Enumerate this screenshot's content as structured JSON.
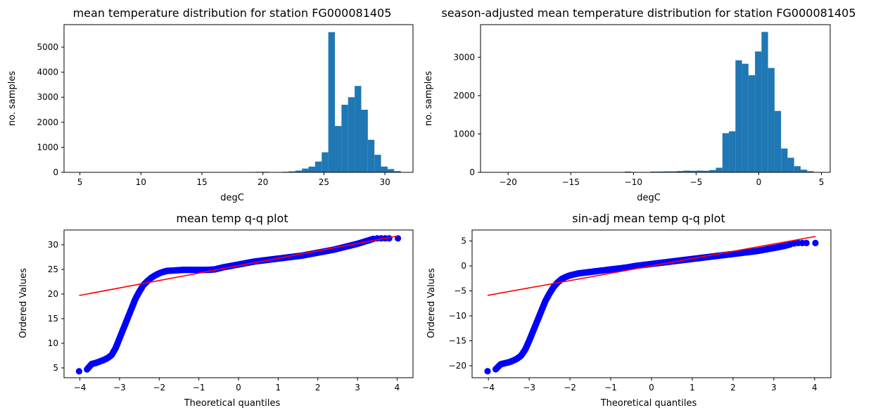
{
  "colors": {
    "hist_bar": "#1f77b4",
    "qq_points": "#0000ff",
    "qq_line": "#ff0000"
  },
  "chart_data": [
    {
      "type": "bar",
      "title": "mean temperature distribution for station FG000081405",
      "xlabel": "degC",
      "ylabel": "no. samples",
      "xlim": [
        3.7,
        32.3
      ],
      "ylim": [
        0,
        5900
      ],
      "xticks": [
        "5",
        "10",
        "15",
        "20",
        "25",
        "30"
      ],
      "yticks": [
        "0",
        "1000",
        "2000",
        "3000",
        "4000",
        "5000"
      ],
      "bin_edges": [
        4.3,
        4.84,
        5.38,
        5.92,
        6.46,
        7.0,
        7.54,
        8.08,
        8.62,
        9.16,
        9.7,
        10.24,
        10.78,
        11.32,
        11.86,
        12.4,
        12.94,
        13.48,
        14.02,
        14.56,
        15.1,
        15.64,
        16.18,
        16.72,
        17.26,
        17.8,
        18.34,
        18.88,
        19.42,
        19.96,
        20.5,
        21.04,
        21.58,
        22.12,
        22.66,
        23.2,
        23.74,
        24.28,
        24.82,
        25.36,
        25.9,
        26.44,
        26.98,
        27.52,
        28.06,
        28.6,
        29.14,
        29.68,
        30.22,
        30.76,
        31.3
      ],
      "values": [
        2,
        1,
        1,
        1,
        1,
        1,
        1,
        0,
        0,
        0,
        0,
        0,
        0,
        0,
        0,
        0,
        0,
        0,
        0,
        0,
        0,
        0,
        0,
        0,
        0,
        0,
        0,
        15,
        20,
        22,
        12,
        12,
        22,
        40,
        70,
        150,
        230,
        430,
        800,
        5600,
        1850,
        2700,
        3000,
        3450,
        2500,
        1300,
        700,
        230,
        130,
        50
      ]
    },
    {
      "type": "bar",
      "title": "season-adjusted mean temperature distribution for station FG000081405",
      "xlabel": "degC",
      "ylabel": "no. samples",
      "xlim": [
        -22.2,
        5.7
      ],
      "ylim": [
        0,
        3850
      ],
      "xticks": [
        "−20",
        "−15",
        "−10",
        "−5",
        "0",
        "5"
      ],
      "yticks": [
        "0",
        "1000",
        "2000",
        "3000"
      ],
      "bin_edges": [
        -21.1,
        -20.58,
        -20.06,
        -19.54,
        -19.02,
        -18.5,
        -17.98,
        -17.46,
        -16.94,
        -16.42,
        -15.9,
        -15.38,
        -14.86,
        -14.34,
        -13.82,
        -13.3,
        -12.78,
        -12.26,
        -11.74,
        -11.22,
        -10.7,
        -10.18,
        -9.66,
        -9.14,
        -8.62,
        -8.1,
        -7.58,
        -7.06,
        -6.54,
        -6.02,
        -5.5,
        -4.98,
        -4.46,
        -3.94,
        -3.42,
        -2.9,
        -2.38,
        -1.86,
        -1.34,
        -0.82,
        -0.3,
        0.22,
        0.74,
        1.26,
        1.78,
        2.3,
        2.82,
        3.34,
        3.86,
        4.38,
        4.9
      ],
      "values": [
        2,
        1,
        1,
        1,
        1,
        0,
        0,
        0,
        0,
        0,
        0,
        0,
        0,
        0,
        0,
        0,
        0,
        0,
        0,
        0,
        20,
        10,
        8,
        10,
        20,
        22,
        25,
        25,
        35,
        45,
        40,
        45,
        40,
        60,
        120,
        1020,
        1070,
        2920,
        2830,
        2530,
        3150,
        3660,
        2720,
        1600,
        620,
        380,
        160,
        70,
        30,
        10
      ]
    },
    {
      "type": "scatter",
      "title": "mean temp q-q plot",
      "xlabel": "Theoretical quantiles",
      "ylabel": "Ordered Values",
      "xlim": [
        -4.4,
        4.4
      ],
      "ylim": [
        3.0,
        33.0
      ],
      "xticks": [
        "−4",
        "−3",
        "−2",
        "−1",
        "0",
        "1",
        "2",
        "3",
        "4"
      ],
      "yticks": [
        "5",
        "10",
        "15",
        "20",
        "25",
        "30"
      ],
      "series": [
        {
          "role": "points",
          "x": [
            -4.02,
            -3.82,
            -3.7,
            -3.6,
            -3.5,
            -3.4,
            -3.3,
            -3.2,
            -3.1,
            -3.0,
            -2.9,
            -2.8,
            -2.7,
            -2.6,
            -2.5,
            -2.4,
            -2.3,
            -2.2,
            -2.1,
            -2.0,
            -1.9,
            -1.8,
            -1.6,
            -1.4,
            -1.2,
            -1.0,
            -0.8,
            -0.6,
            -0.4,
            -0.2,
            0.0,
            0.2,
            0.4,
            0.6,
            0.8,
            1.0,
            1.2,
            1.4,
            1.6,
            1.8,
            2.0,
            2.2,
            2.4,
            2.6,
            2.8,
            3.0,
            3.2,
            3.4,
            3.5,
            3.6,
            3.7,
            3.8,
            4.02
          ],
          "y": [
            4.3,
            4.7,
            5.8,
            6.0,
            6.3,
            6.6,
            7.0,
            7.6,
            9.0,
            11.0,
            13.0,
            15.0,
            17.0,
            19.0,
            20.5,
            21.8,
            22.6,
            23.3,
            23.8,
            24.2,
            24.5,
            24.7,
            24.8,
            24.9,
            24.9,
            24.9,
            24.9,
            25.0,
            25.4,
            25.7,
            26.0,
            26.3,
            26.6,
            26.8,
            27.0,
            27.2,
            27.4,
            27.6,
            27.8,
            28.1,
            28.4,
            28.7,
            29.0,
            29.4,
            29.8,
            30.2,
            30.7,
            31.2,
            31.3,
            31.3,
            31.3,
            31.3,
            31.3
          ]
        },
        {
          "role": "fit-line",
          "x": [
            -4.02,
            4.02
          ],
          "y": [
            19.7,
            31.8
          ]
        }
      ]
    },
    {
      "type": "scatter",
      "title": "sin-adj mean temp q-q plot",
      "xlabel": "Theoretical quantiles",
      "ylabel": "Ordered Values",
      "xlim": [
        -4.4,
        4.4
      ],
      "ylim": [
        -22.4,
        7.2
      ],
      "xticks": [
        "−4",
        "−3",
        "−2",
        "−1",
        "0",
        "1",
        "2",
        "3",
        "4"
      ],
      "yticks": [
        "−20",
        "−15",
        "−10",
        "−5",
        "0",
        "5"
      ],
      "series": [
        {
          "role": "points",
          "x": [
            -4.02,
            -3.82,
            -3.7,
            -3.6,
            -3.5,
            -3.4,
            -3.3,
            -3.2,
            -3.1,
            -3.0,
            -2.9,
            -2.8,
            -2.7,
            -2.6,
            -2.5,
            -2.4,
            -2.3,
            -2.2,
            -2.1,
            -2.0,
            -1.9,
            -1.8,
            -1.6,
            -1.4,
            -1.2,
            -1.0,
            -0.8,
            -0.6,
            -0.4,
            -0.2,
            0.0,
            0.2,
            0.4,
            0.6,
            0.8,
            1.0,
            1.2,
            1.4,
            1.6,
            1.8,
            2.0,
            2.2,
            2.4,
            2.6,
            2.8,
            3.0,
            3.2,
            3.4,
            3.5,
            3.6,
            3.7,
            3.8,
            4.02
          ],
          "y": [
            -21.1,
            -20.7,
            -19.7,
            -19.5,
            -19.3,
            -19.0,
            -18.6,
            -18.0,
            -16.8,
            -15.0,
            -13.0,
            -11.0,
            -9.0,
            -7.0,
            -5.5,
            -4.2,
            -3.3,
            -2.6,
            -2.2,
            -1.9,
            -1.7,
            -1.5,
            -1.3,
            -1.1,
            -0.9,
            -0.7,
            -0.5,
            -0.3,
            0.0,
            0.2,
            0.4,
            0.6,
            0.8,
            1.0,
            1.2,
            1.4,
            1.6,
            1.8,
            2.0,
            2.2,
            2.4,
            2.6,
            2.8,
            3.0,
            3.3,
            3.6,
            3.9,
            4.3,
            4.5,
            4.6,
            4.6,
            4.6,
            4.6
          ]
        },
        {
          "role": "fit-line",
          "x": [
            -4.02,
            4.02
          ],
          "y": [
            -5.9,
            5.9
          ]
        }
      ]
    }
  ]
}
